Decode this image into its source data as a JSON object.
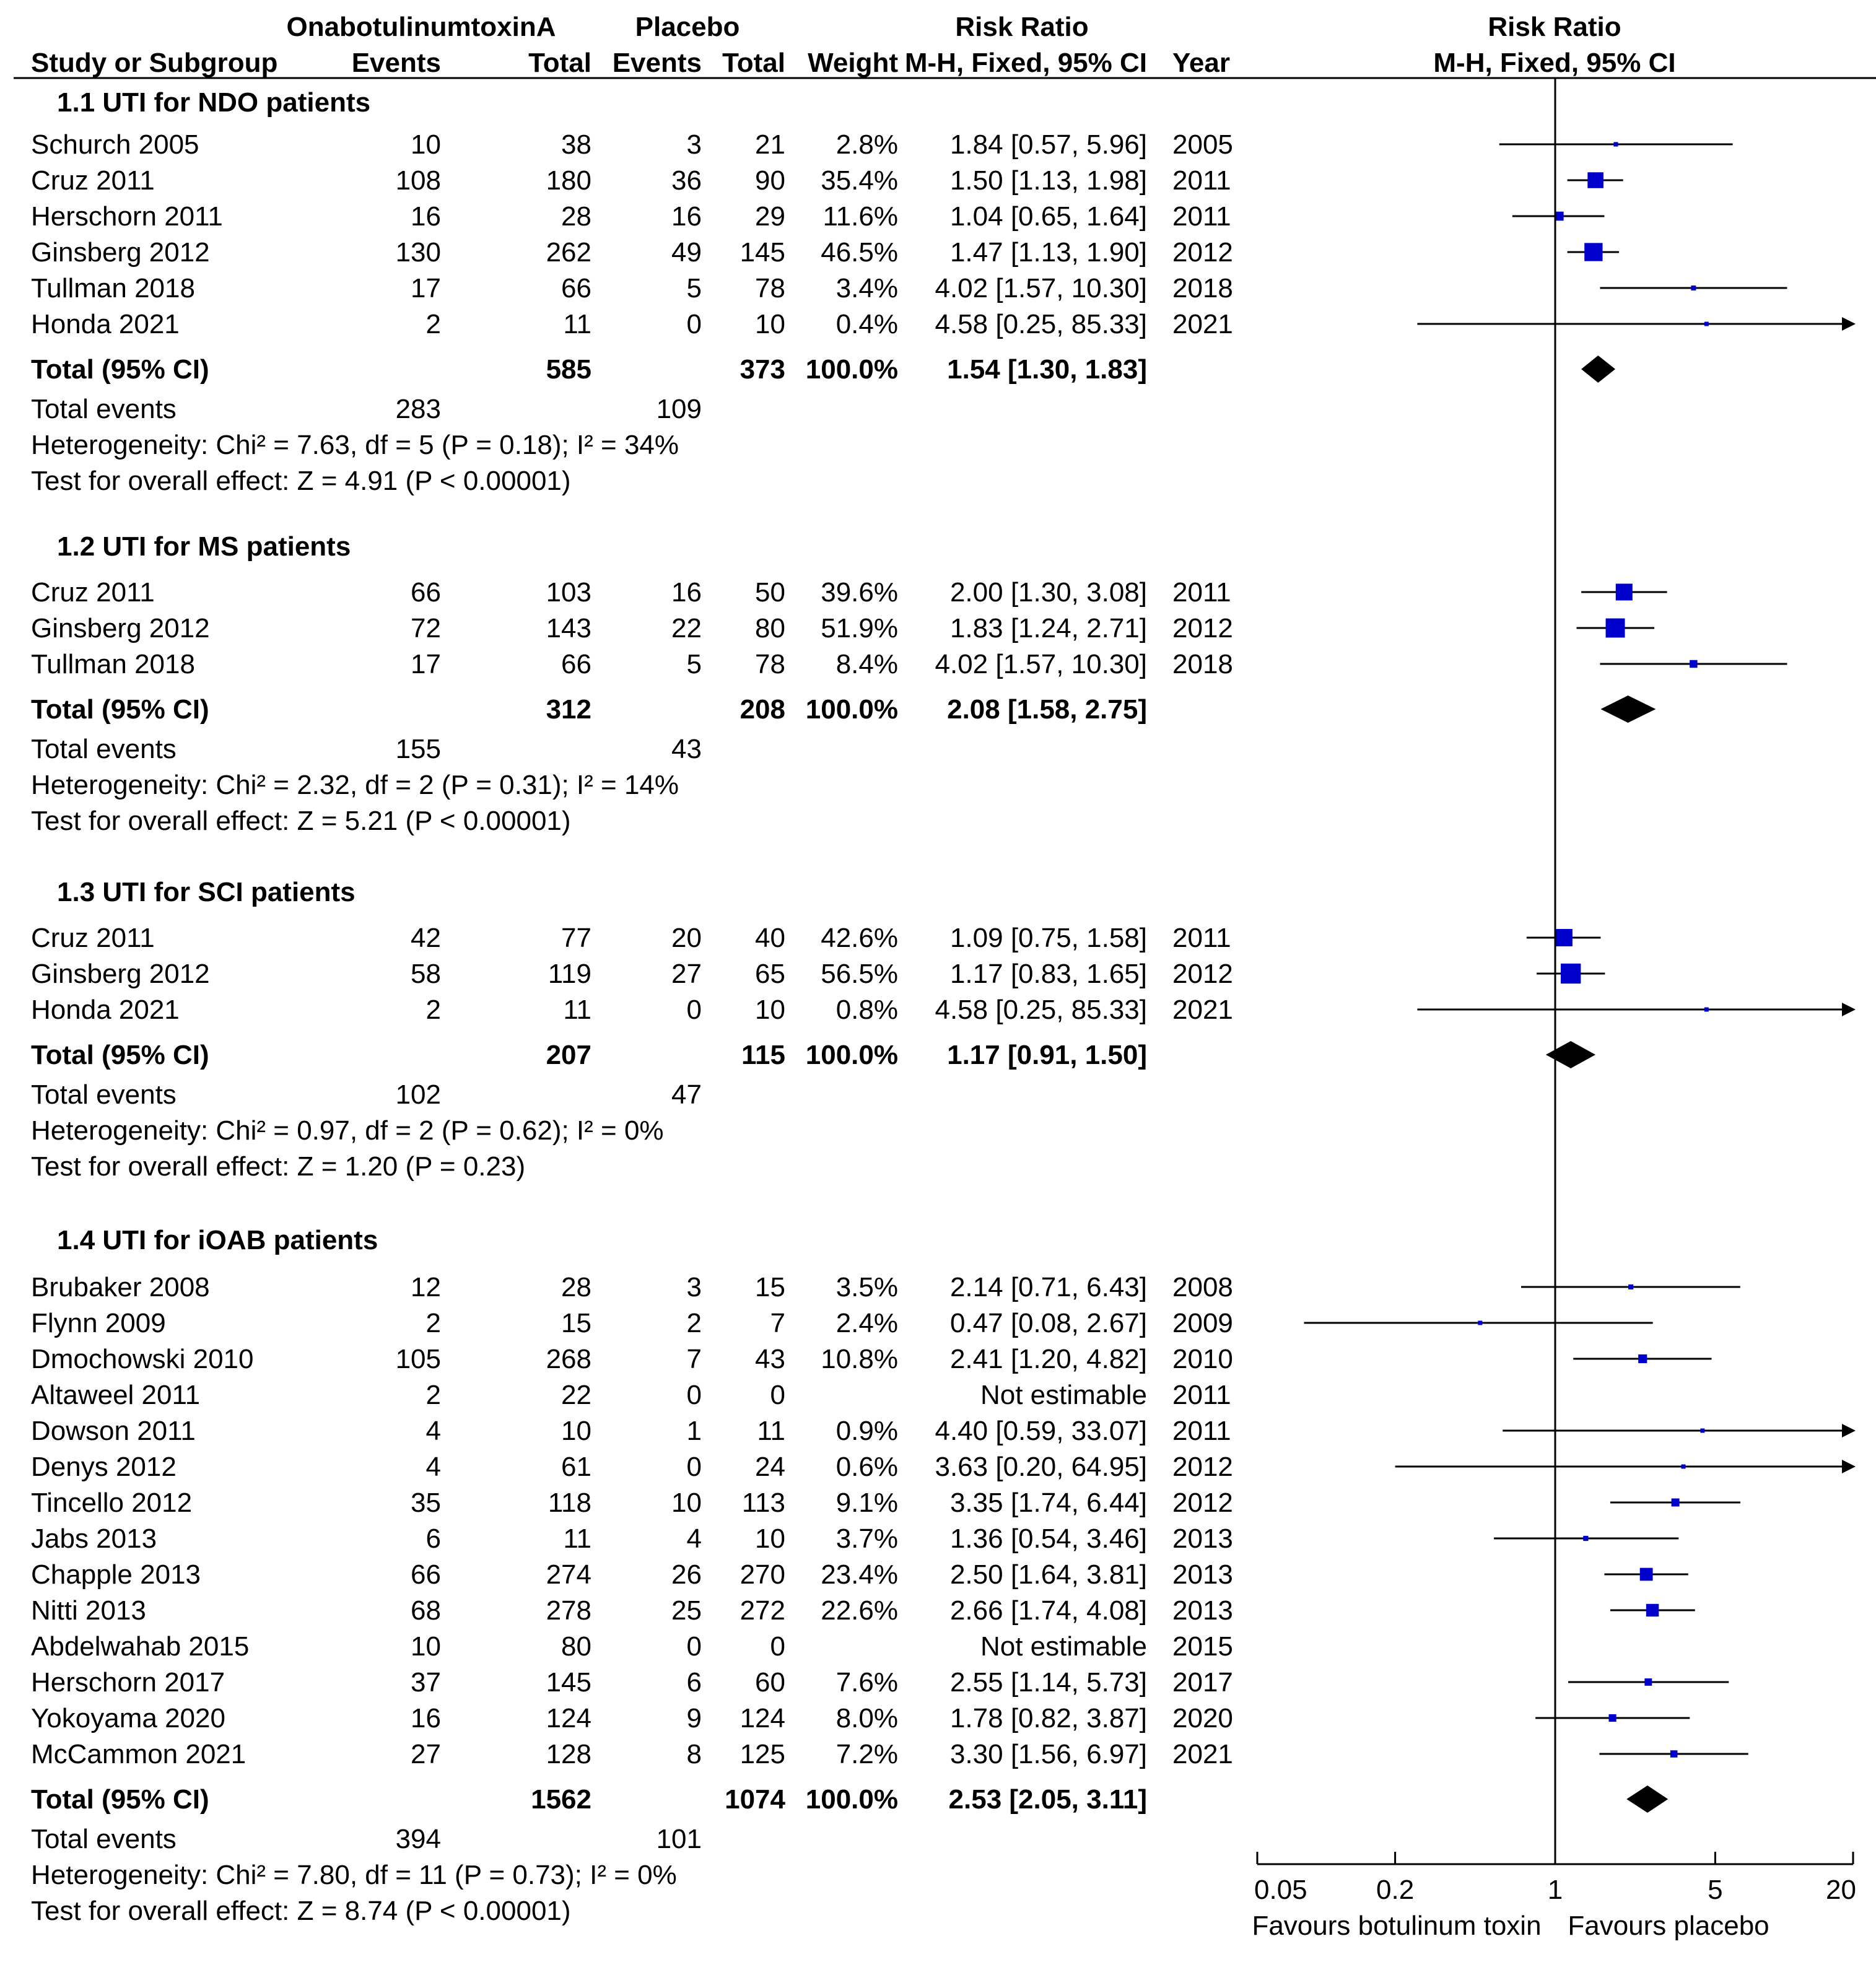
{
  "headers": {
    "group1": "OnabotulinumtoxinA",
    "group2": "Placebo",
    "risk_ratio": "Risk Ratio",
    "study": "Study or Subgroup",
    "events1": "Events",
    "total1": "Total",
    "events2": "Events",
    "total2": "Total",
    "weight": "Weight",
    "method": "M-H, Fixed, 95% CI",
    "year": "Year",
    "plot_title": "Risk Ratio",
    "plot_method": "M-H, Fixed, 95% CI"
  },
  "axis": {
    "ticks": [
      0.05,
      0.2,
      1,
      5,
      20
    ],
    "tick_labels": [
      "0.05",
      "0.2",
      "1",
      "5",
      "20"
    ],
    "favours_left": "Favours botulinum toxin",
    "favours_right": "Favours placebo"
  },
  "chart_data": {
    "type": "forest",
    "scale": "log",
    "xlim": [
      0.05,
      20
    ],
    "reference_line": 1,
    "subgroups": [
      {
        "title": "1.1 UTI for NDO patients",
        "studies": [
          {
            "study": "Schurch 2005",
            "e1": "10",
            "t1": "38",
            "e2": "3",
            "t2": "21",
            "weight": "2.8%",
            "ci_text": "1.84 [0.57, 5.96]",
            "year": "2005",
            "rr": 1.84,
            "lo": 0.57,
            "hi": 5.96
          },
          {
            "study": "Cruz 2011",
            "e1": "108",
            "t1": "180",
            "e2": "36",
            "t2": "90",
            "weight": "35.4%",
            "ci_text": "1.50 [1.13, 1.98]",
            "year": "2011",
            "rr": 1.5,
            "lo": 1.13,
            "hi": 1.98
          },
          {
            "study": "Herschorn 2011",
            "e1": "16",
            "t1": "28",
            "e2": "16",
            "t2": "29",
            "weight": "11.6%",
            "ci_text": "1.04 [0.65, 1.64]",
            "year": "2011",
            "rr": 1.04,
            "lo": 0.65,
            "hi": 1.64
          },
          {
            "study": "Ginsberg 2012",
            "e1": "130",
            "t1": "262",
            "e2": "49",
            "t2": "145",
            "weight": "46.5%",
            "ci_text": "1.47 [1.13, 1.90]",
            "year": "2012",
            "rr": 1.47,
            "lo": 1.13,
            "hi": 1.9
          },
          {
            "study": "Tullman 2018",
            "e1": "17",
            "t1": "66",
            "e2": "5",
            "t2": "78",
            "weight": "3.4%",
            "ci_text": "4.02 [1.57, 10.30]",
            "year": "2018",
            "rr": 4.02,
            "lo": 1.57,
            "hi": 10.3
          },
          {
            "study": "Honda 2021",
            "e1": "2",
            "t1": "11",
            "e2": "0",
            "t2": "10",
            "weight": "0.4%",
            "ci_text": "4.58 [0.25, 85.33]",
            "year": "2021",
            "rr": 4.58,
            "lo": 0.25,
            "hi": 85.33
          }
        ],
        "total": {
          "label": "Total (95% CI)",
          "t1": "585",
          "t2": "373",
          "weight": "100.0%",
          "ci_text": "1.54 [1.30, 1.83]",
          "rr": 1.54,
          "lo": 1.3,
          "hi": 1.83
        },
        "total_events": {
          "label": "Total events",
          "e1": "283",
          "e2": "109"
        },
        "heterogeneity": "Heterogeneity: Chi² = 7.63, df = 5 (P = 0.18); I² = 34%",
        "overall": "Test for overall effect: Z = 4.91 (P < 0.00001)"
      },
      {
        "title": "1.2 UTI for MS patients",
        "studies": [
          {
            "study": "Cruz 2011",
            "e1": "66",
            "t1": "103",
            "e2": "16",
            "t2": "50",
            "weight": "39.6%",
            "ci_text": "2.00 [1.30, 3.08]",
            "year": "2011",
            "rr": 2.0,
            "lo": 1.3,
            "hi": 3.08
          },
          {
            "study": "Ginsberg 2012",
            "e1": "72",
            "t1": "143",
            "e2": "22",
            "t2": "80",
            "weight": "51.9%",
            "ci_text": "1.83 [1.24, 2.71]",
            "year": "2012",
            "rr": 1.83,
            "lo": 1.24,
            "hi": 2.71
          },
          {
            "study": "Tullman 2018",
            "e1": "17",
            "t1": "66",
            "e2": "5",
            "t2": "78",
            "weight": "8.4%",
            "ci_text": "4.02 [1.57, 10.30]",
            "year": "2018",
            "rr": 4.02,
            "lo": 1.57,
            "hi": 10.3
          }
        ],
        "total": {
          "label": "Total (95% CI)",
          "t1": "312",
          "t2": "208",
          "weight": "100.0%",
          "ci_text": "2.08 [1.58, 2.75]",
          "rr": 2.08,
          "lo": 1.58,
          "hi": 2.75
        },
        "total_events": {
          "label": "Total events",
          "e1": "155",
          "e2": "43"
        },
        "heterogeneity": "Heterogeneity: Chi² = 2.32, df = 2 (P = 0.31); I² = 14%",
        "overall": "Test for overall effect: Z = 5.21 (P < 0.00001)"
      },
      {
        "title": "1.3 UTI for SCI patients",
        "studies": [
          {
            "study": "Cruz 2011",
            "e1": "42",
            "t1": "77",
            "e2": "20",
            "t2": "40",
            "weight": "42.6%",
            "ci_text": "1.09 [0.75, 1.58]",
            "year": "2011",
            "rr": 1.09,
            "lo": 0.75,
            "hi": 1.58
          },
          {
            "study": "Ginsberg 2012",
            "e1": "58",
            "t1": "119",
            "e2": "27",
            "t2": "65",
            "weight": "56.5%",
            "ci_text": "1.17 [0.83, 1.65]",
            "year": "2012",
            "rr": 1.17,
            "lo": 0.83,
            "hi": 1.65
          },
          {
            "study": "Honda 2021",
            "e1": "2",
            "t1": "11",
            "e2": "0",
            "t2": "10",
            "weight": "0.8%",
            "ci_text": "4.58 [0.25, 85.33]",
            "year": "2021",
            "rr": 4.58,
            "lo": 0.25,
            "hi": 85.33
          }
        ],
        "total": {
          "label": "Total (95% CI)",
          "t1": "207",
          "t2": "115",
          "weight": "100.0%",
          "ci_text": "1.17 [0.91, 1.50]",
          "rr": 1.17,
          "lo": 0.91,
          "hi": 1.5
        },
        "total_events": {
          "label": "Total events",
          "e1": "102",
          "e2": "47"
        },
        "heterogeneity": "Heterogeneity: Chi² = 0.97, df = 2 (P = 0.62); I² = 0%",
        "overall": "Test for overall effect: Z = 1.20 (P = 0.23)"
      },
      {
        "title": "1.4 UTI for iOAB patients",
        "studies": [
          {
            "study": "Brubaker 2008",
            "e1": "12",
            "t1": "28",
            "e2": "3",
            "t2": "15",
            "weight": "3.5%",
            "ci_text": "2.14 [0.71, 6.43]",
            "year": "2008",
            "rr": 2.14,
            "lo": 0.71,
            "hi": 6.43
          },
          {
            "study": "Flynn 2009",
            "e1": "2",
            "t1": "15",
            "e2": "2",
            "t2": "7",
            "weight": "2.4%",
            "ci_text": "0.47 [0.08, 2.67]",
            "year": "2009",
            "rr": 0.47,
            "lo": 0.08,
            "hi": 2.67
          },
          {
            "study": "Dmochowski 2010",
            "e1": "105",
            "t1": "268",
            "e2": "7",
            "t2": "43",
            "weight": "10.8%",
            "ci_text": "2.41 [1.20, 4.82]",
            "year": "2010",
            "rr": 2.41,
            "lo": 1.2,
            "hi": 4.82
          },
          {
            "study": "Altaweel 2011",
            "e1": "2",
            "t1": "22",
            "e2": "0",
            "t2": "0",
            "weight": "",
            "ci_text": "Not estimable",
            "year": "2011",
            "rr": null,
            "lo": null,
            "hi": null
          },
          {
            "study": "Dowson 2011",
            "e1": "4",
            "t1": "10",
            "e2": "1",
            "t2": "11",
            "weight": "0.9%",
            "ci_text": "4.40 [0.59, 33.07]",
            "year": "2011",
            "rr": 4.4,
            "lo": 0.59,
            "hi": 33.07
          },
          {
            "study": "Denys 2012",
            "e1": "4",
            "t1": "61",
            "e2": "0",
            "t2": "24",
            "weight": "0.6%",
            "ci_text": "3.63 [0.20, 64.95]",
            "year": "2012",
            "rr": 3.63,
            "lo": 0.2,
            "hi": 64.95
          },
          {
            "study": "Tincello 2012",
            "e1": "35",
            "t1": "118",
            "e2": "10",
            "t2": "113",
            "weight": "9.1%",
            "ci_text": "3.35 [1.74, 6.44]",
            "year": "2012",
            "rr": 3.35,
            "lo": 1.74,
            "hi": 6.44
          },
          {
            "study": "Jabs 2013",
            "e1": "6",
            "t1": "11",
            "e2": "4",
            "t2": "10",
            "weight": "3.7%",
            "ci_text": "1.36 [0.54, 3.46]",
            "year": "2013",
            "rr": 1.36,
            "lo": 0.54,
            "hi": 3.46
          },
          {
            "study": "Chapple 2013",
            "e1": "66",
            "t1": "274",
            "e2": "26",
            "t2": "270",
            "weight": "23.4%",
            "ci_text": "2.50 [1.64, 3.81]",
            "year": "2013",
            "rr": 2.5,
            "lo": 1.64,
            "hi": 3.81
          },
          {
            "study": "Nitti 2013",
            "e1": "68",
            "t1": "278",
            "e2": "25",
            "t2": "272",
            "weight": "22.6%",
            "ci_text": "2.66 [1.74, 4.08]",
            "year": "2013",
            "rr": 2.66,
            "lo": 1.74,
            "hi": 4.08
          },
          {
            "study": "Abdelwahab 2015",
            "e1": "10",
            "t1": "80",
            "e2": "0",
            "t2": "0",
            "weight": "",
            "ci_text": "Not estimable",
            "year": "2015",
            "rr": null,
            "lo": null,
            "hi": null
          },
          {
            "study": "Herschorn 2017",
            "e1": "37",
            "t1": "145",
            "e2": "6",
            "t2": "60",
            "weight": "7.6%",
            "ci_text": "2.55 [1.14, 5.73]",
            "year": "2017",
            "rr": 2.55,
            "lo": 1.14,
            "hi": 5.73
          },
          {
            "study": "Yokoyama 2020",
            "e1": "16",
            "t1": "124",
            "e2": "9",
            "t2": "124",
            "weight": "8.0%",
            "ci_text": "1.78 [0.82, 3.87]",
            "year": "2020",
            "rr": 1.78,
            "lo": 0.82,
            "hi": 3.87
          },
          {
            "study": "McCammon 2021",
            "e1": "27",
            "t1": "128",
            "e2": "8",
            "t2": "125",
            "weight": "7.2%",
            "ci_text": "3.30 [1.56, 6.97]",
            "year": "2021",
            "rr": 3.3,
            "lo": 1.56,
            "hi": 6.97
          }
        ],
        "total": {
          "label": "Total (95% CI)",
          "t1": "1562",
          "t2": "1074",
          "weight": "100.0%",
          "ci_text": "2.53 [2.05, 3.11]",
          "rr": 2.53,
          "lo": 2.05,
          "hi": 3.11
        },
        "total_events": {
          "label": "Total events",
          "e1": "394",
          "e2": "101"
        },
        "heterogeneity": "Heterogeneity: Chi² = 7.80, df = 11 (P = 0.73); I² = 0%",
        "overall": "Test for overall effect: Z = 8.74 (P < 0.00001)"
      }
    ]
  }
}
